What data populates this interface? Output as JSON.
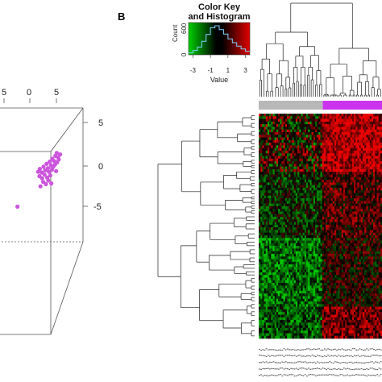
{
  "panel_label": "B",
  "colors": {
    "green": "#00c000",
    "black": "#000000",
    "red": "#d00000",
    "group1": "#b8b8b8",
    "group2": "#cc33ee",
    "point": "#cc55dd"
  },
  "chart_data": [
    {
      "type": "scatter",
      "title": "",
      "axis_ticks_top": [
        "5",
        "0",
        "5"
      ],
      "axis_ticks_right": [
        "5",
        "0",
        "-5"
      ],
      "points": [
        {
          "x": 0.5,
          "y": 0.2
        },
        {
          "x": 1.0,
          "y": 0.6
        },
        {
          "x": 1.6,
          "y": 0.1
        },
        {
          "x": 2.1,
          "y": 0.9
        },
        {
          "x": 2.6,
          "y": 0.4
        },
        {
          "x": 3.0,
          "y": 1.3
        },
        {
          "x": 3.4,
          "y": 0.7
        },
        {
          "x": 3.9,
          "y": 1.6
        },
        {
          "x": 4.3,
          "y": 1.1
        },
        {
          "x": 4.7,
          "y": 2.0
        },
        {
          "x": 5.2,
          "y": 1.7
        },
        {
          "x": 5.6,
          "y": 2.4
        },
        {
          "x": 6.0,
          "y": 2.8
        },
        {
          "x": 6.4,
          "y": 2.2
        },
        {
          "x": 0.9,
          "y": -0.4
        },
        {
          "x": 1.7,
          "y": -0.7
        },
        {
          "x": 2.4,
          "y": -0.2
        },
        {
          "x": 3.2,
          "y": -0.6
        },
        {
          "x": 3.7,
          "y": 0.2
        },
        {
          "x": 4.1,
          "y": -0.3
        },
        {
          "x": 4.6,
          "y": 0.5
        },
        {
          "x": 5.0,
          "y": 0.9
        },
        {
          "x": 5.5,
          "y": 1.2
        },
        {
          "x": 6.1,
          "y": 1.5
        },
        {
          "x": 6.6,
          "y": 1.9
        },
        {
          "x": 7.0,
          "y": 2.6
        },
        {
          "x": 2.0,
          "y": -1.2
        },
        {
          "x": 2.8,
          "y": -1.5
        },
        {
          "x": 3.5,
          "y": -1.0
        },
        {
          "x": 4.4,
          "y": -1.4
        },
        {
          "x": 1.2,
          "y": -1.8
        },
        {
          "x": 5.8,
          "y": 0.3
        },
        {
          "x": -5.6,
          "y": -4.6
        }
      ]
    },
    {
      "type": "heatmap",
      "color_key": {
        "title_line1": "Color Key",
        "title_line2": "and Histogram",
        "y_label": "Count",
        "y_ticks": [
          "0",
          "600"
        ],
        "x_label": "Value",
        "x_ticks": [
          "-3",
          "-1",
          "1",
          "3"
        ],
        "range": [
          -3.5,
          3.5
        ],
        "histogram": [
          40,
          90,
          160,
          280,
          420,
          560,
          600,
          520,
          430,
          330,
          250,
          180,
          120,
          70
        ]
      },
      "groups": [
        {
          "label": "",
          "color": "#b8b8b8",
          "fraction": 0.52
        },
        {
          "label": "",
          "color": "#cc33ee",
          "fraction": 0.48
        }
      ],
      "n_rows": 85,
      "n_cols": 70
    }
  ]
}
